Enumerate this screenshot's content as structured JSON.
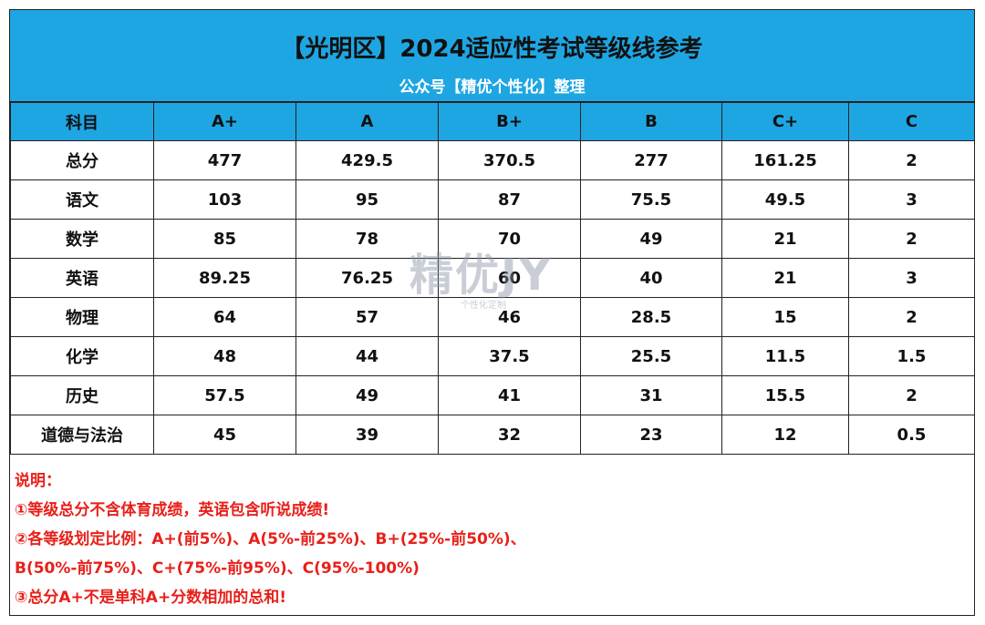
{
  "header": {
    "title": "【光明区】2024适应性考试等级线参考",
    "subtitle": "公众号【精优个性化】整理"
  },
  "table": {
    "columns": [
      "科目",
      "A+",
      "A",
      "B+",
      "B",
      "C+",
      "C"
    ],
    "rows": [
      [
        "总分",
        "477",
        "429.5",
        "370.5",
        "277",
        "161.25",
        "2"
      ],
      [
        "语文",
        "103",
        "95",
        "87",
        "75.5",
        "49.5",
        "3"
      ],
      [
        "数学",
        "85",
        "78",
        "70",
        "49",
        "21",
        "2"
      ],
      [
        "英语",
        "89.25",
        "76.25",
        "60",
        "40",
        "21",
        "3"
      ],
      [
        "物理",
        "64",
        "57",
        "46",
        "28.5",
        "15",
        "2"
      ],
      [
        "化学",
        "48",
        "44",
        "37.5",
        "25.5",
        "11.5",
        "1.5"
      ],
      [
        "历史",
        "57.5",
        "49",
        "41",
        "31",
        "15.5",
        "2"
      ],
      [
        "道德与法治",
        "45",
        "39",
        "32",
        "23",
        "12",
        "0.5"
      ]
    ]
  },
  "notes": [
    "说明：",
    "①等级总分不含体育成绩，英语包含听说成绩!",
    "②各等级划定比例：A+(前5%)、A(5%-前25%)、B+(25%-前50%)、",
    "B(50%-前75%)、C+(75%-前95%)、C(95%-100%)",
    "③总分A+不是单科A+分数相加的总和!"
  ],
  "watermark": {
    "text": "精优JY",
    "subtext": "个性化定制"
  },
  "colors": {
    "header_bg": "#1ea6e3",
    "note_text": "#e8201a"
  }
}
